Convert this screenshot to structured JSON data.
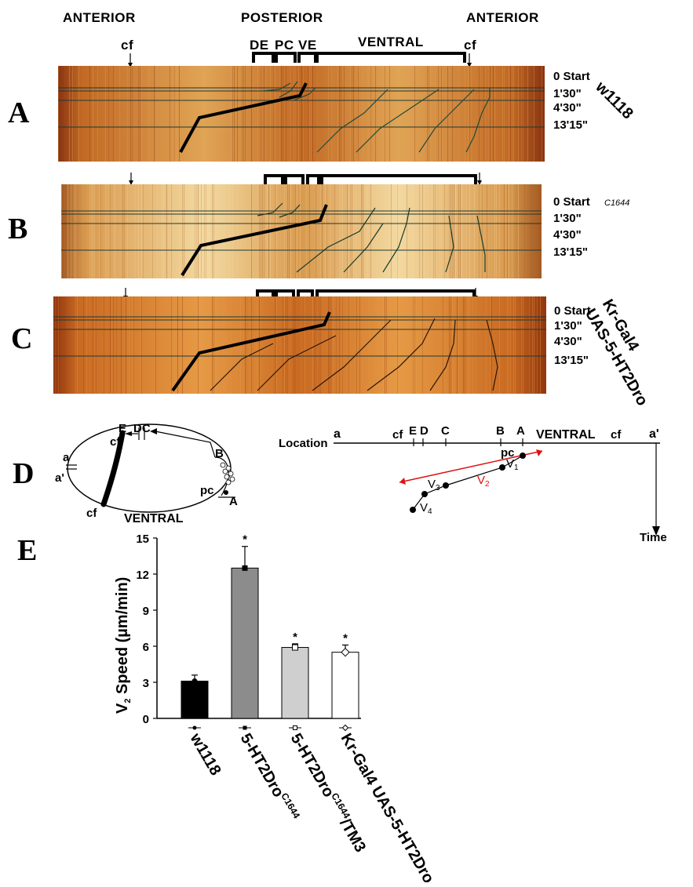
{
  "headers": {
    "anterior_left": "ANTERIOR",
    "posterior": "POSTERIOR",
    "anterior_right": "ANTERIOR",
    "cf_left": "cf",
    "cf_right": "cf",
    "de": "DE",
    "pc": "PC",
    "ve": "VE",
    "ventral": "VENTRAL"
  },
  "panels": [
    {
      "letter": "A",
      "genotype_lines": [
        "w1118"
      ],
      "genotype_sup": "",
      "times": [
        "0 Start",
        "1'30\"",
        "4'30\"",
        "13'15\""
      ],
      "colors": {
        "base": "#c26a25",
        "light": "#e0a455",
        "dark": "#8a3412"
      }
    },
    {
      "letter": "B",
      "genotype_lines": [
        ""
      ],
      "genotype_sup": "C1644",
      "times": [
        "0 Start",
        "1'30\"",
        "4'30\"",
        "13'15\""
      ],
      "colors": {
        "base": "#d99a4f",
        "light": "#f3d9a0",
        "dark": "#a45a22"
      }
    },
    {
      "letter": "C",
      "genotype_lines": [
        "Kr-Gal4",
        "UAS-5-HT2Dro"
      ],
      "genotype_sup": "",
      "times": [
        "0 Start",
        "1'30\"",
        "4'30\"",
        "13'15\""
      ],
      "colors": {
        "base": "#c96a22",
        "light": "#e69a45",
        "dark": "#90360e"
      }
    }
  ],
  "panel_d": {
    "letter": "D",
    "embryo": {
      "e": "E",
      "dc": "DC",
      "b": "B",
      "a": "a",
      "a_prime": "a'",
      "pc": "pc",
      "A": "A",
      "cf_top": "cf",
      "cf_bottom": "cf",
      "ventral": "VENTRAL"
    },
    "timeline": {
      "location": "Location",
      "a": "a",
      "cf1": "cf",
      "e": "E",
      "d": "D",
      "c": "C",
      "b": "B",
      "A": "A",
      "ventral": "VENTRAL",
      "cf2": "cf",
      "a_prime": "a'",
      "time": "Time",
      "pc": "pc",
      "v1": "V",
      "v1_sub": "1",
      "v2": "V",
      "v2_sub": "2",
      "v3": "V",
      "v3_sub": "3",
      "v4": "V",
      "v4_sub": "4"
    }
  },
  "panel_e": {
    "letter": "E",
    "chart_data": {
      "type": "bar",
      "ylabel_main": "V",
      "ylabel_sub": "2",
      "ylabel_rest": " Speed (µm/min)",
      "ylim": [
        0,
        15
      ],
      "yticks": [
        "0",
        "3",
        "6",
        "9",
        "12",
        "15"
      ],
      "categories": [
        {
          "main": "w1118",
          "sup": "",
          "tail": ""
        },
        {
          "main": "5-HT2Dro",
          "sup": "C1644",
          "tail": ""
        },
        {
          "main": "5-HT2Dro",
          "sup": "C1644",
          "tail": "/TM3"
        },
        {
          "main": "Kr-Gal4 UAS-5-HT2Dro",
          "sup": "",
          "tail": ""
        }
      ],
      "values": [
        3.1,
        12.5,
        5.9,
        5.5
      ],
      "errors": [
        0.5,
        1.8,
        0.3,
        0.6
      ],
      "significance": [
        "",
        "*",
        "*",
        "*"
      ],
      "bar_colors": [
        "#000000",
        "#8c8c8c",
        "#cfcfcf",
        "#ffffff"
      ],
      "markers": [
        "filled-circle",
        "filled-square",
        "open-square",
        "open-diamond"
      ]
    }
  }
}
